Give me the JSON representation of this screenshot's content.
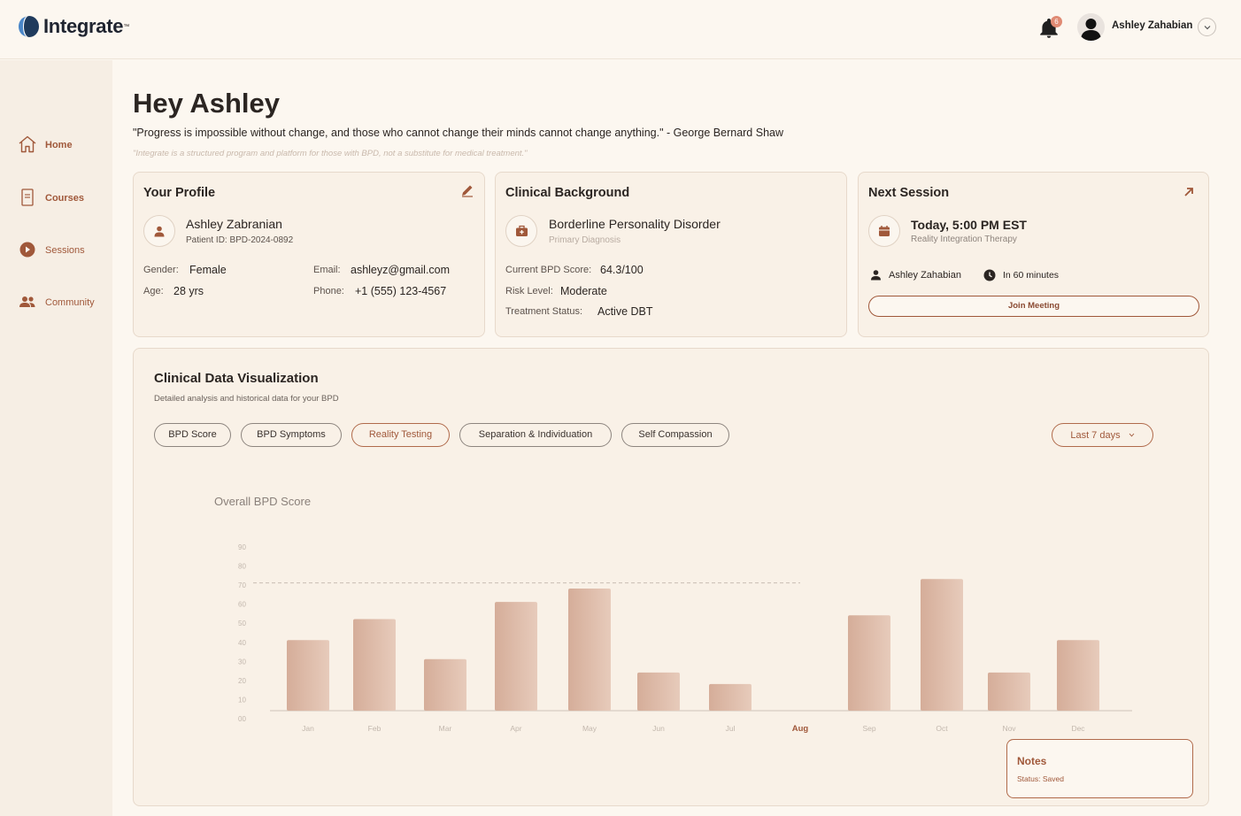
{
  "app": {
    "name": "Integrate",
    "tm": "™"
  },
  "header": {
    "notification_count": "6",
    "user_name": "Ashley Zahabian"
  },
  "sidebar": {
    "items": [
      {
        "label": "Home",
        "icon": "home-icon"
      },
      {
        "label": "Courses",
        "icon": "document-icon"
      },
      {
        "label": "Sessions",
        "icon": "play-icon"
      },
      {
        "label": "Community",
        "icon": "people-icon"
      }
    ]
  },
  "main": {
    "greeting": "Hey Ashley",
    "quote": "\"Progress is impossible without change, and those who cannot change their minds cannot change anything.\" - George Bernard Shaw",
    "disclaimer": "\"Integrate is a structured program and platform for those with BPD, not a substitute for medical treatment.\""
  },
  "profile": {
    "title": "Your Profile",
    "name": "Ashley Zabranian",
    "patient_id": "Patient ID: BPD-2024-0892",
    "gender_label": "Gender:",
    "gender": "Female",
    "age_label": "Age:",
    "age": "28 yrs",
    "email_label": "Email:",
    "email": "ashleyz@gmail.com",
    "phone_label": "Phone:",
    "phone": "+1 (555) 123-4567"
  },
  "clinical": {
    "title": "Clinical Background",
    "diagnosis": "Borderline Personality Disorder",
    "diagnosis_sub": "Primary Diagnosis",
    "score_label": "Current BPD Score:",
    "score": "64.3/100",
    "risk_label": "Risk Level:",
    "risk": "Moderate",
    "status_label": "Treatment Status:",
    "status": "Active DBT"
  },
  "session": {
    "title": "Next Session",
    "time": "Today, 5:00 PM EST",
    "therapy": "Reality Integration Therapy",
    "therapist": "Ashley Zahabian",
    "countdown": "In 60 minutes",
    "join_label": "Join Meeting"
  },
  "viz": {
    "title": "Clinical Data Visualization",
    "subtitle": "Detailed analysis and historical data for your BPD",
    "tabs": [
      "BPD Score",
      "BPD Symptoms",
      "Reality Testing",
      "Separation & Individuation",
      "Self Compassion"
    ],
    "active_tab": "Reality Testing",
    "range": "Last 7 days",
    "notes_title": "Notes",
    "notes_status": "Status: Saved"
  },
  "chart_data": {
    "type": "bar",
    "title": "Overall BPD Score",
    "categories": [
      "Jan",
      "Feb",
      "Mar",
      "Apr",
      "May",
      "Jun",
      "Jul",
      "Aug",
      "Sep",
      "Oct",
      "Nov",
      "Dec"
    ],
    "values": [
      37,
      48,
      27,
      57,
      64,
      20,
      14,
      null,
      50,
      69,
      20,
      37
    ],
    "highlighted_category": "Aug",
    "yticks": [
      "00",
      "10",
      "20",
      "30",
      "40",
      "50",
      "60",
      "70",
      "80",
      "90"
    ],
    "ylim": [
      0,
      90
    ],
    "reference_line": 67,
    "colors": {
      "bar_light": "#e7cbbb",
      "bar_dark": "#d5ad99",
      "axis": "#cfc3b8",
      "tick": "#c2b7ad",
      "highlight": "#a0583a"
    }
  }
}
